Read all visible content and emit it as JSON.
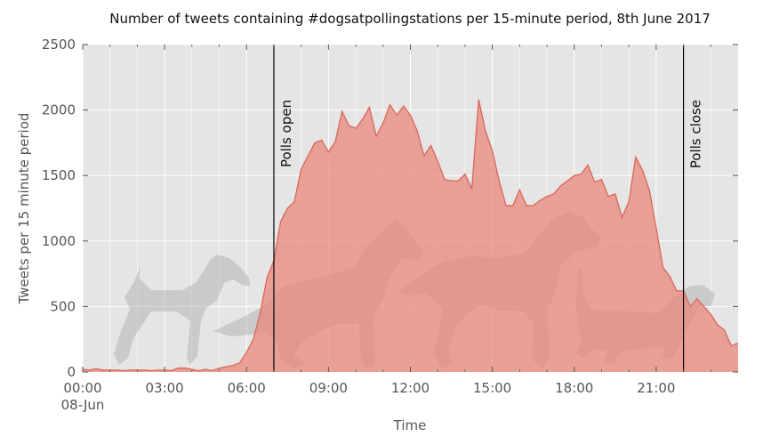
{
  "colors": {
    "area_fill": "#e8877a",
    "area_line": "#d9675a",
    "plot_bg": "#e5e5e5",
    "grid": "#ffffff",
    "dog_silhouette": "#a9a9a9"
  },
  "chart_data": {
    "type": "area",
    "title": "Number of tweets containing #dogsatpollingstations per 15-minute period, 8th June 2017",
    "xlabel": "Time",
    "ylabel": "Tweets per 15 minute period",
    "ylim": [
      0,
      2500
    ],
    "xlim_hours": [
      0,
      24
    ],
    "grid": true,
    "yticks": [
      {
        "value": 0,
        "label": "0"
      },
      {
        "value": 500,
        "label": "500"
      },
      {
        "value": 1000,
        "label": "1000"
      },
      {
        "value": 1500,
        "label": "1500"
      },
      {
        "value": 2000,
        "label": "2000"
      },
      {
        "value": 2500,
        "label": "2500"
      }
    ],
    "xticks": [
      {
        "hour": 0,
        "label": "00:00",
        "sublabel": "08-Jun"
      },
      {
        "hour": 3,
        "label": "03:00"
      },
      {
        "hour": 6,
        "label": "06:00"
      },
      {
        "hour": 9,
        "label": "09:00"
      },
      {
        "hour": 12,
        "label": "12:00"
      },
      {
        "hour": 15,
        "label": "15:00"
      },
      {
        "hour": 18,
        "label": "18:00"
      },
      {
        "hour": 21,
        "label": "21:00"
      }
    ],
    "x_minor_hours": [
      1,
      2,
      4,
      5,
      7,
      8,
      10,
      11,
      13,
      14,
      16,
      17,
      19,
      20,
      22,
      23
    ],
    "annotations": [
      {
        "hour": 7,
        "label": "Polls open"
      },
      {
        "hour": 22,
        "label": "Polls close"
      }
    ],
    "series": [
      {
        "x_hours": [
          0,
          0.25,
          0.5,
          0.75,
          1,
          1.25,
          1.5,
          1.75,
          2,
          2.25,
          2.5,
          2.75,
          3,
          3.25,
          3.5,
          3.75,
          4,
          4.25,
          4.5,
          4.75,
          5,
          5.25,
          5.5,
          5.75,
          6,
          6.25,
          6.5,
          6.75,
          7,
          7.25,
          7.5,
          7.75,
          8,
          8.25,
          8.5,
          8.75,
          9,
          9.25,
          9.5,
          9.75,
          10,
          10.25,
          10.5,
          10.75,
          11,
          11.25,
          11.5,
          11.75,
          12,
          12.25,
          12.5,
          12.75,
          13,
          13.25,
          13.5,
          13.75,
          14,
          14.25,
          14.5,
          14.75,
          15,
          15.25,
          15.5,
          15.75,
          16,
          16.25,
          16.5,
          16.75,
          17,
          17.25,
          17.5,
          17.75,
          18,
          18.25,
          18.5,
          18.75,
          19,
          19.25,
          19.5,
          19.75,
          20,
          20.25,
          20.5,
          20.75,
          21,
          21.25,
          21.5,
          21.75,
          22,
          22.25,
          22.5,
          22.75,
          23,
          23.25,
          23.5,
          23.75,
          24
        ],
        "values": [
          20,
          15,
          25,
          15,
          15,
          15,
          10,
          15,
          15,
          15,
          10,
          15,
          15,
          10,
          30,
          30,
          20,
          10,
          20,
          10,
          30,
          40,
          50,
          70,
          150,
          250,
          450,
          720,
          850,
          1150,
          1250,
          1300,
          1550,
          1650,
          1750,
          1770,
          1680,
          1760,
          1990,
          1880,
          1860,
          1930,
          2020,
          1800,
          1900,
          2040,
          1960,
          2030,
          1960,
          1840,
          1650,
          1730,
          1610,
          1470,
          1460,
          1460,
          1510,
          1400,
          2080,
          1840,
          1690,
          1460,
          1270,
          1270,
          1390,
          1270,
          1270,
          1310,
          1340,
          1360,
          1420,
          1460,
          1500,
          1510,
          1580,
          1450,
          1470,
          1340,
          1360,
          1180,
          1300,
          1640,
          1540,
          1390,
          1100,
          800,
          730,
          620,
          620,
          500,
          560,
          500,
          440,
          360,
          320,
          200,
          220
        ]
      }
    ]
  }
}
